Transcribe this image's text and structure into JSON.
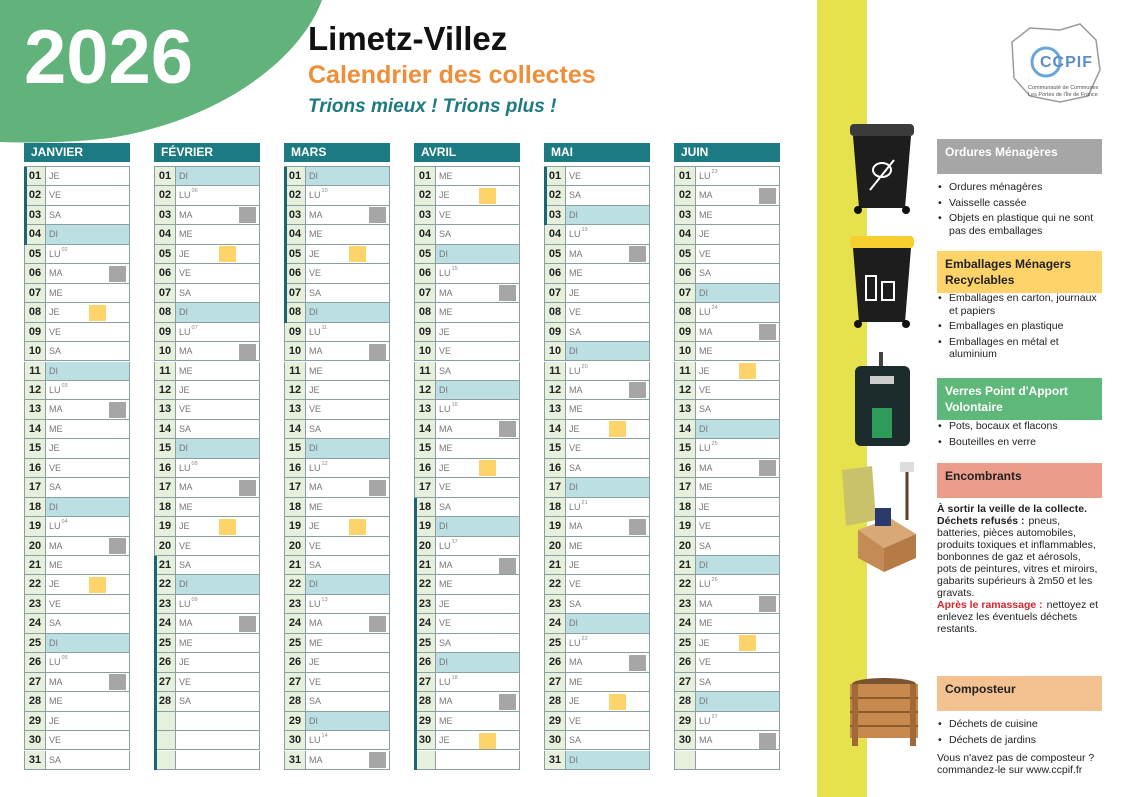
{
  "header": {
    "year": "2026",
    "title": "Limetz-Villez",
    "subtitle": "Calendrier des collectes",
    "slogan": "Trions mieux ! Trions plus !"
  },
  "logo": {
    "name": "CCPIF",
    "caption": "Communauté de Communes Les Portes de l'Île de France"
  },
  "calendar": {
    "months": [
      {
        "name": "JANVIER",
        "days": [
          [
            "01",
            "JE"
          ],
          [
            "02",
            "VE"
          ],
          [
            "03",
            "SA"
          ],
          [
            "04",
            "DI"
          ],
          [
            "05",
            "LU",
            "02"
          ],
          [
            "06",
            "MA"
          ],
          [
            "07",
            "ME"
          ],
          [
            "08",
            "JE"
          ],
          [
            "09",
            "VE"
          ],
          [
            "10",
            "SA"
          ],
          [
            "11",
            "DI"
          ],
          [
            "12",
            "LU",
            "03"
          ],
          [
            "13",
            "MA"
          ],
          [
            "14",
            "ME"
          ],
          [
            "15",
            "JE"
          ],
          [
            "16",
            "VE"
          ],
          [
            "17",
            "SA"
          ],
          [
            "18",
            "DI"
          ],
          [
            "19",
            "LU",
            "04"
          ],
          [
            "20",
            "MA"
          ],
          [
            "21",
            "ME"
          ],
          [
            "22",
            "JE"
          ],
          [
            "23",
            "VE"
          ],
          [
            "24",
            "SA"
          ],
          [
            "25",
            "DI"
          ],
          [
            "26",
            "LU",
            "05"
          ],
          [
            "27",
            "MA"
          ],
          [
            "28",
            "ME"
          ],
          [
            "29",
            "JE"
          ],
          [
            "30",
            "VE"
          ],
          [
            "31",
            "SA"
          ]
        ],
        "gray": [
          6,
          13,
          20,
          27
        ],
        "yellow": [
          8,
          22
        ],
        "vacation": [
          [
            1,
            4
          ]
        ]
      },
      {
        "name": "FÉVRIER",
        "days": [
          [
            "01",
            "DI"
          ],
          [
            "02",
            "LU",
            "06"
          ],
          [
            "03",
            "MA"
          ],
          [
            "04",
            "ME"
          ],
          [
            "05",
            "JE"
          ],
          [
            "06",
            "VE"
          ],
          [
            "07",
            "SA"
          ],
          [
            "08",
            "DI"
          ],
          [
            "09",
            "LU",
            "07"
          ],
          [
            "10",
            "MA"
          ],
          [
            "11",
            "ME"
          ],
          [
            "12",
            "JE"
          ],
          [
            "13",
            "VE"
          ],
          [
            "14",
            "SA"
          ],
          [
            "15",
            "DI"
          ],
          [
            "16",
            "LU",
            "08"
          ],
          [
            "17",
            "MA"
          ],
          [
            "18",
            "ME"
          ],
          [
            "19",
            "JE"
          ],
          [
            "20",
            "VE"
          ],
          [
            "21",
            "SA"
          ],
          [
            "22",
            "DI"
          ],
          [
            "23",
            "LU",
            "09"
          ],
          [
            "24",
            "MA"
          ],
          [
            "25",
            "ME"
          ],
          [
            "26",
            "JE"
          ],
          [
            "27",
            "VE"
          ],
          [
            "28",
            "SA"
          ]
        ],
        "gray": [
          3,
          10,
          17,
          24
        ],
        "yellow": [
          5,
          19
        ],
        "vacation": [
          [
            21,
            31
          ]
        ]
      },
      {
        "name": "MARS",
        "days": [
          [
            "01",
            "DI"
          ],
          [
            "02",
            "LU",
            "10"
          ],
          [
            "03",
            "MA"
          ],
          [
            "04",
            "ME"
          ],
          [
            "05",
            "JE"
          ],
          [
            "06",
            "VE"
          ],
          [
            "07",
            "SA"
          ],
          [
            "08",
            "DI"
          ],
          [
            "09",
            "LU",
            "11"
          ],
          [
            "10",
            "MA"
          ],
          [
            "11",
            "ME"
          ],
          [
            "12",
            "JE"
          ],
          [
            "13",
            "VE"
          ],
          [
            "14",
            "SA"
          ],
          [
            "15",
            "DI"
          ],
          [
            "16",
            "LU",
            "12"
          ],
          [
            "17",
            "MA"
          ],
          [
            "18",
            "ME"
          ],
          [
            "19",
            "JE"
          ],
          [
            "20",
            "VE"
          ],
          [
            "21",
            "SA"
          ],
          [
            "22",
            "DI"
          ],
          [
            "23",
            "LU",
            "13"
          ],
          [
            "24",
            "MA"
          ],
          [
            "25",
            "ME"
          ],
          [
            "26",
            "JE"
          ],
          [
            "27",
            "VE"
          ],
          [
            "28",
            "SA"
          ],
          [
            "29",
            "DI"
          ],
          [
            "30",
            "LU",
            "14"
          ],
          [
            "31",
            "MA"
          ]
        ],
        "gray": [
          3,
          10,
          17,
          24,
          31
        ],
        "yellow": [
          5,
          19
        ],
        "vacation": [
          [
            1,
            8
          ]
        ]
      },
      {
        "name": "AVRIL",
        "days": [
          [
            "01",
            "ME"
          ],
          [
            "02",
            "JE"
          ],
          [
            "03",
            "VE"
          ],
          [
            "04",
            "SA"
          ],
          [
            "05",
            "DI"
          ],
          [
            "06",
            "LU",
            "15"
          ],
          [
            "07",
            "MA"
          ],
          [
            "08",
            "ME"
          ],
          [
            "09",
            "JE"
          ],
          [
            "10",
            "VE"
          ],
          [
            "11",
            "SA"
          ],
          [
            "12",
            "DI"
          ],
          [
            "13",
            "LU",
            "16"
          ],
          [
            "14",
            "MA"
          ],
          [
            "15",
            "ME"
          ],
          [
            "16",
            "JE"
          ],
          [
            "17",
            "VE"
          ],
          [
            "18",
            "SA"
          ],
          [
            "19",
            "DI"
          ],
          [
            "20",
            "LU",
            "17"
          ],
          [
            "21",
            "MA"
          ],
          [
            "22",
            "ME"
          ],
          [
            "23",
            "JE"
          ],
          [
            "24",
            "VE"
          ],
          [
            "25",
            "SA"
          ],
          [
            "26",
            "DI"
          ],
          [
            "27",
            "LU",
            "18"
          ],
          [
            "28",
            "MA"
          ],
          [
            "29",
            "ME"
          ],
          [
            "30",
            "JE"
          ]
        ],
        "gray": [
          7,
          14,
          21,
          28
        ],
        "yellow": [
          2,
          16,
          30
        ],
        "vacation": [
          [
            18,
            31
          ]
        ]
      },
      {
        "name": "MAI",
        "days": [
          [
            "01",
            "VE"
          ],
          [
            "02",
            "SA"
          ],
          [
            "03",
            "DI"
          ],
          [
            "04",
            "LU",
            "19"
          ],
          [
            "05",
            "MA"
          ],
          [
            "06",
            "ME"
          ],
          [
            "07",
            "JE"
          ],
          [
            "08",
            "VE"
          ],
          [
            "09",
            "SA"
          ],
          [
            "10",
            "DI"
          ],
          [
            "11",
            "LU",
            "20"
          ],
          [
            "12",
            "MA"
          ],
          [
            "13",
            "ME"
          ],
          [
            "14",
            "JE"
          ],
          [
            "15",
            "VE"
          ],
          [
            "16",
            "SA"
          ],
          [
            "17",
            "DI"
          ],
          [
            "18",
            "LU",
            "21"
          ],
          [
            "19",
            "MA"
          ],
          [
            "20",
            "ME"
          ],
          [
            "21",
            "JE"
          ],
          [
            "22",
            "VE"
          ],
          [
            "23",
            "SA"
          ],
          [
            "24",
            "DI"
          ],
          [
            "25",
            "LU",
            "22"
          ],
          [
            "26",
            "MA"
          ],
          [
            "27",
            "ME"
          ],
          [
            "28",
            "JE"
          ],
          [
            "29",
            "VE"
          ],
          [
            "30",
            "SA"
          ],
          [
            "31",
            "DI"
          ]
        ],
        "gray": [
          5,
          12,
          19,
          26
        ],
        "yellow": [
          14,
          28
        ],
        "vacation": [
          [
            1,
            3
          ]
        ]
      },
      {
        "name": "JUIN",
        "days": [
          [
            "01",
            "LU",
            "23"
          ],
          [
            "02",
            "MA"
          ],
          [
            "03",
            "ME"
          ],
          [
            "04",
            "JE"
          ],
          [
            "05",
            "VE"
          ],
          [
            "06",
            "SA"
          ],
          [
            "07",
            "DI"
          ],
          [
            "08",
            "LU",
            "24"
          ],
          [
            "09",
            "MA"
          ],
          [
            "10",
            "ME"
          ],
          [
            "11",
            "JE"
          ],
          [
            "12",
            "VE"
          ],
          [
            "13",
            "SA"
          ],
          [
            "14",
            "DI"
          ],
          [
            "15",
            "LU",
            "25"
          ],
          [
            "16",
            "MA"
          ],
          [
            "17",
            "ME"
          ],
          [
            "18",
            "JE"
          ],
          [
            "19",
            "VE"
          ],
          [
            "20",
            "SA"
          ],
          [
            "21",
            "DI"
          ],
          [
            "22",
            "LU",
            "26"
          ],
          [
            "23",
            "MA"
          ],
          [
            "24",
            "ME"
          ],
          [
            "25",
            "JE"
          ],
          [
            "26",
            "VE"
          ],
          [
            "27",
            "SA"
          ],
          [
            "28",
            "DI"
          ],
          [
            "29",
            "LU",
            "27"
          ],
          [
            "30",
            "MA"
          ]
        ],
        "gray": [
          2,
          9,
          16,
          23,
          30
        ],
        "yellow": [
          11,
          25
        ],
        "vacation": []
      }
    ]
  },
  "legend": [
    {
      "title": "Ordures Ménagères",
      "color": "#a6a6a6",
      "text_color": "#ffffff",
      "items": [
        "Ordures ménagères",
        "Vaisselle cassée",
        "Objets en plastique qui ne sont pas des emballages"
      ]
    },
    {
      "title": "Emballages Ménagers Recyclables",
      "color": "#fdd36a",
      "text_color": "#222222",
      "items": [
        "Emballages en carton, journaux et papiers",
        "Emballages en plastique",
        "Emballages en métal et aluminium"
      ]
    },
    {
      "title": "Verres Point d'Apport Volontaire",
      "color": "#5db87a",
      "text_color": "#ffffff",
      "items": [
        "Pots, bocaux et flacons",
        "Bouteilles en verre"
      ]
    },
    {
      "title": "Encombrants",
      "color": "#eb9c8b",
      "text_color": "#222222",
      "body": [
        {
          "strong": "À sortir la veille de la collecte."
        },
        {
          "strong": "Déchets refusés :",
          "text": "pneus, batteries, pièces automobiles, produits toxiques et inflammables, bonbonnes de gaz et aérosols, pots de peintures, vitres et miroirs, gabarits supérieurs à 2m50 et les gravats."
        },
        {
          "alert": "Après le ramassage :",
          "text": "nettoyez et enlevez les éventuels déchets restants."
        }
      ]
    },
    {
      "title": "Composteur",
      "color": "#f4c190",
      "text_color": "#222222",
      "items": [
        "Déchets de cuisine",
        "Déchets de jardins"
      ],
      "note": "Vous n'avez pas de composteur ? commandez-le sur www.ccpif.fr"
    }
  ]
}
